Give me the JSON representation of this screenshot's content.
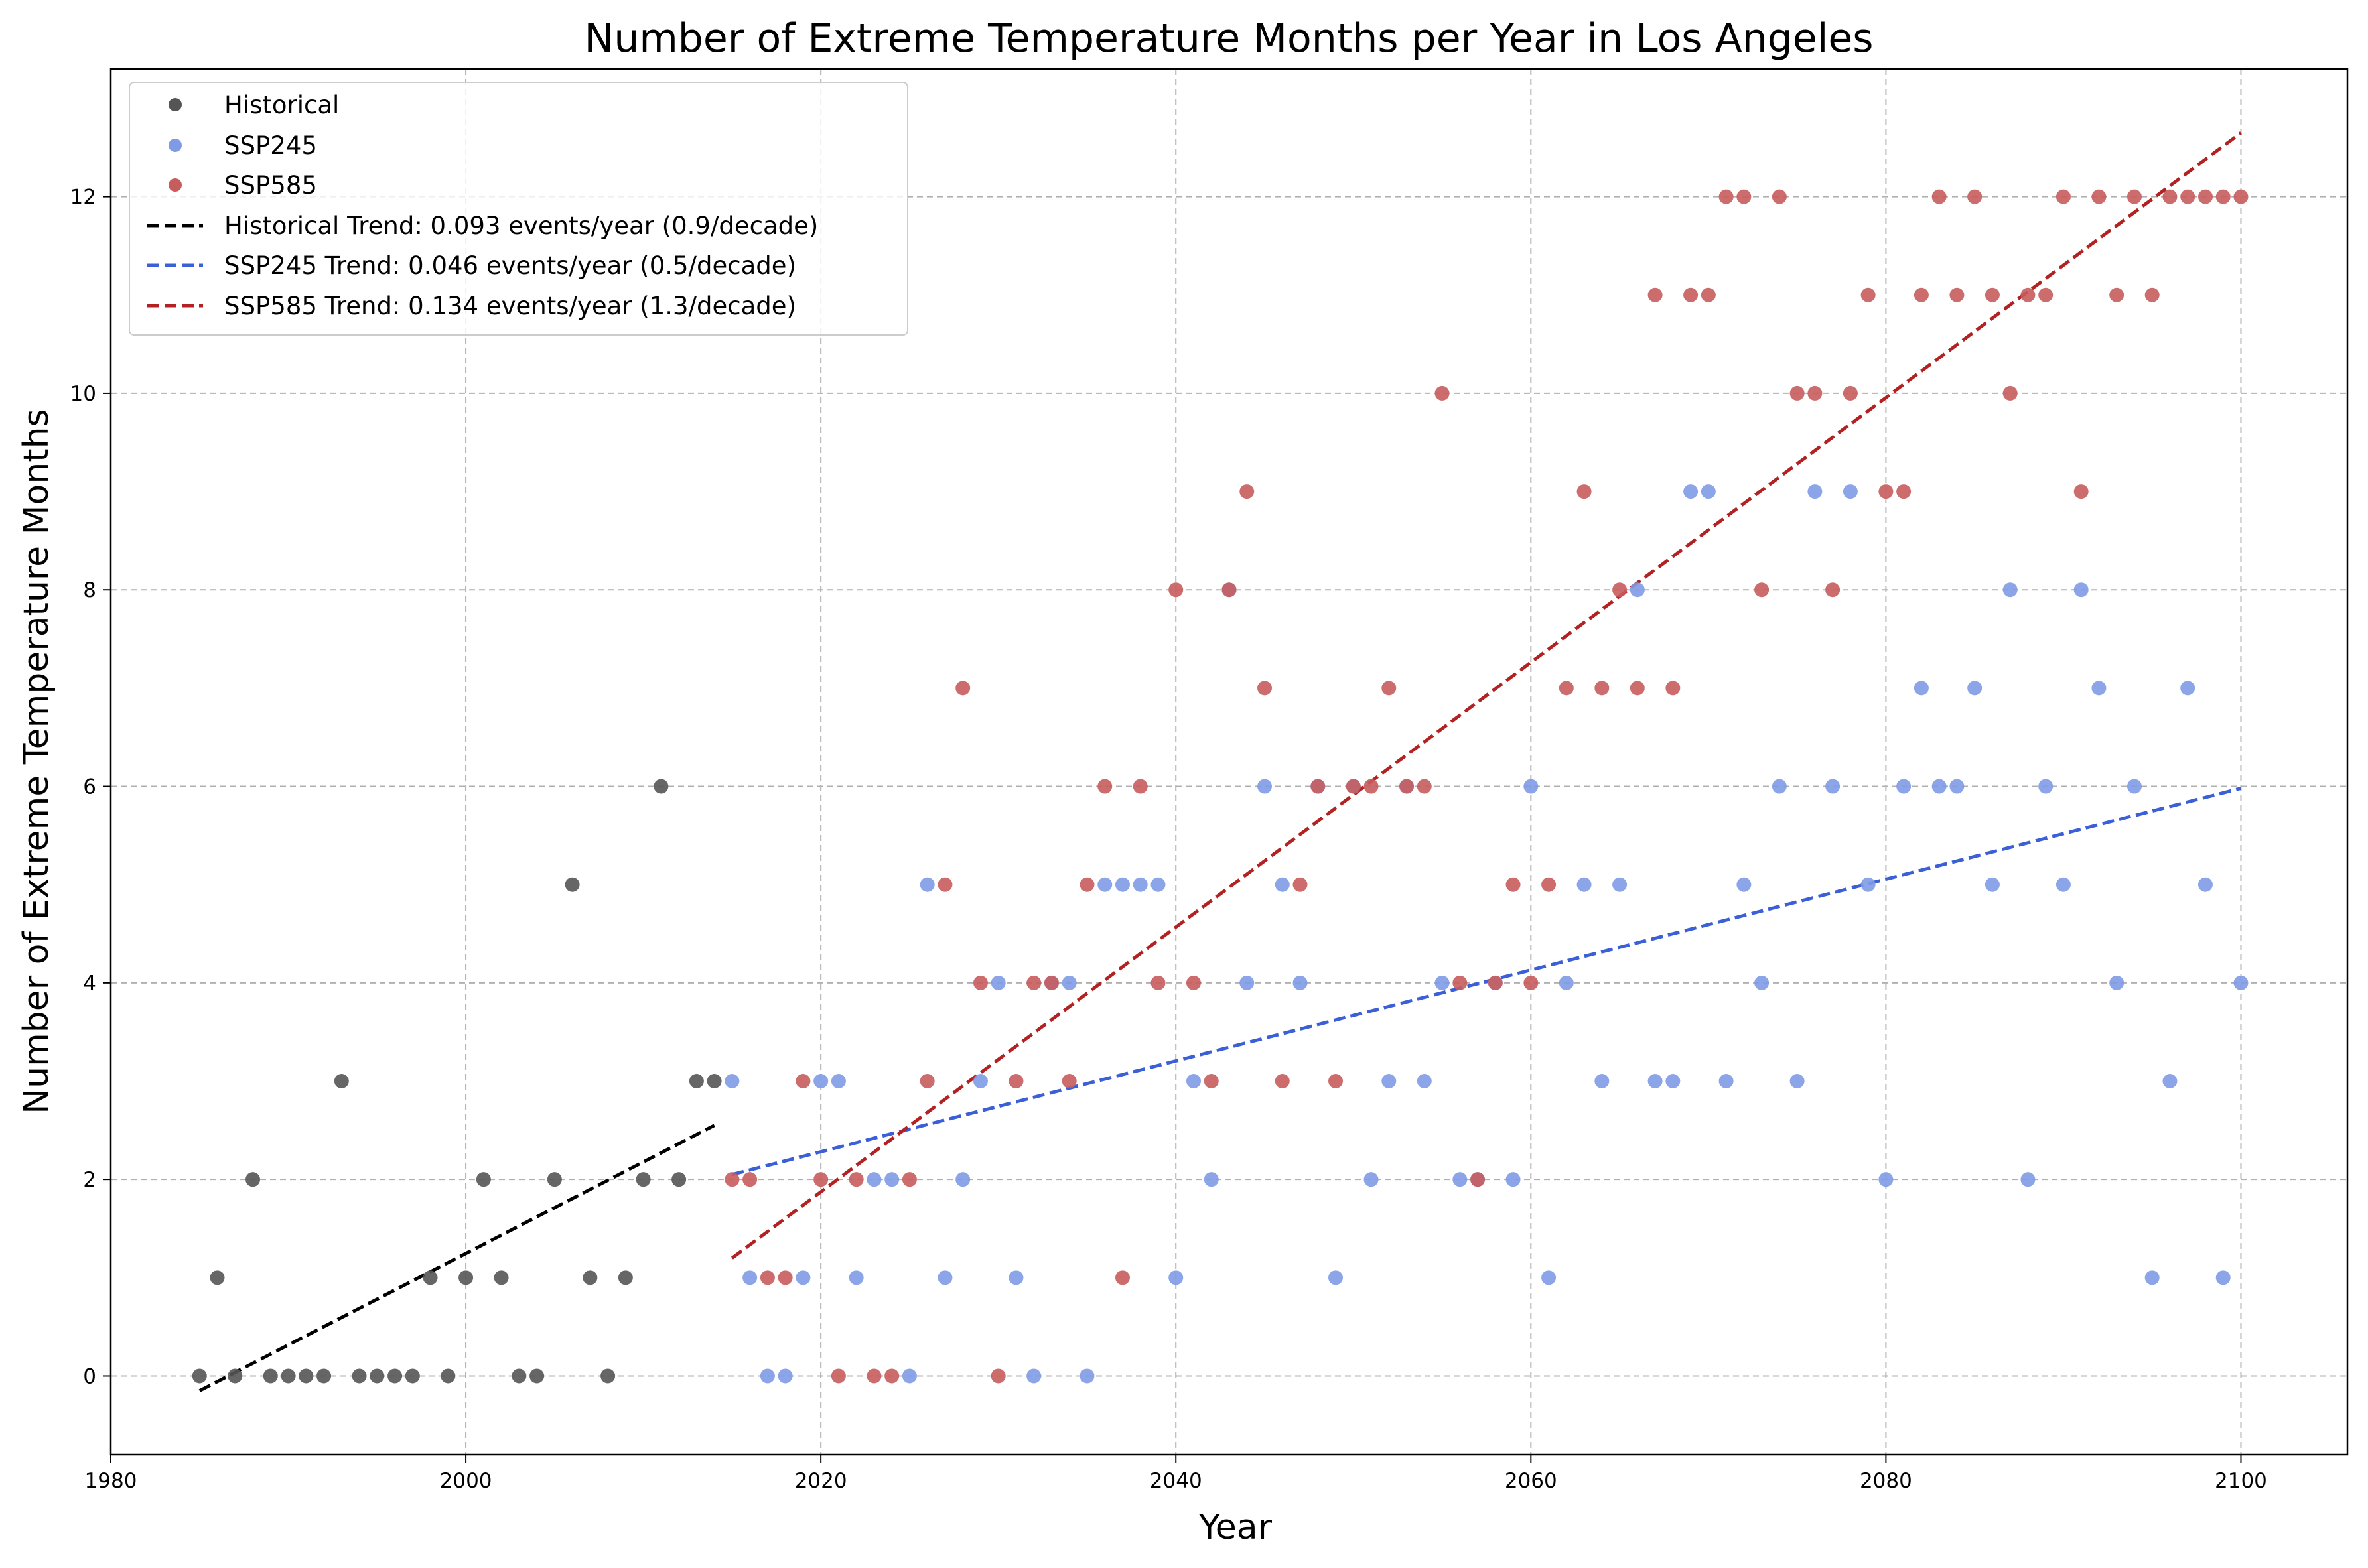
{
  "chart_data": {
    "type": "scatter",
    "title": "Number of Extreme Temperature Months per Year in Los Angeles",
    "xlabel": "Year",
    "ylabel": "Number of Extreme Temperature Months",
    "xlim": [
      1980,
      2106
    ],
    "ylim": [
      -0.8,
      13.3
    ],
    "xticks": [
      1980,
      2000,
      2020,
      2040,
      2060,
      2080,
      2100
    ],
    "yticks": [
      0,
      2,
      4,
      6,
      8,
      10,
      12
    ],
    "grid": true,
    "grid_style": "dashed",
    "legend_position": "top-left",
    "colors": {
      "historical": "#555555",
      "ssp245": "#7f9be6",
      "ssp585": "#c65c5c",
      "historical_trend": "#000000",
      "ssp245_trend": "#3a5fd6",
      "ssp585_trend": "#b22222"
    },
    "series": [
      {
        "name": "Historical",
        "kind": "scatter",
        "color_key": "historical",
        "points": [
          [
            1985,
            0
          ],
          [
            1986,
            1
          ],
          [
            1987,
            0
          ],
          [
            1988,
            2
          ],
          [
            1989,
            0
          ],
          [
            1990,
            0
          ],
          [
            1991,
            0
          ],
          [
            1992,
            0
          ],
          [
            1993,
            3
          ],
          [
            1994,
            0
          ],
          [
            1995,
            0
          ],
          [
            1996,
            0
          ],
          [
            1997,
            0
          ],
          [
            1998,
            1
          ],
          [
            1999,
            0
          ],
          [
            2000,
            1
          ],
          [
            2001,
            2
          ],
          [
            2002,
            1
          ],
          [
            2003,
            0
          ],
          [
            2004,
            0
          ],
          [
            2005,
            2
          ],
          [
            2006,
            5
          ],
          [
            2007,
            1
          ],
          [
            2008,
            0
          ],
          [
            2009,
            1
          ],
          [
            2010,
            2
          ],
          [
            2011,
            6
          ],
          [
            2012,
            2
          ],
          [
            2013,
            3
          ],
          [
            2014,
            3
          ]
        ]
      },
      {
        "name": "SSP245",
        "kind": "scatter",
        "color_key": "ssp245",
        "points": [
          [
            2015,
            3
          ],
          [
            2016,
            1
          ],
          [
            2017,
            0
          ],
          [
            2018,
            0
          ],
          [
            2019,
            1
          ],
          [
            2020,
            3
          ],
          [
            2021,
            3
          ],
          [
            2022,
            1
          ],
          [
            2023,
            2
          ],
          [
            2024,
            2
          ],
          [
            2025,
            0
          ],
          [
            2026,
            5
          ],
          [
            2027,
            1
          ],
          [
            2028,
            2
          ],
          [
            2029,
            3
          ],
          [
            2030,
            4
          ],
          [
            2031,
            1
          ],
          [
            2032,
            0
          ],
          [
            2033,
            4
          ],
          [
            2034,
            4
          ],
          [
            2035,
            0
          ],
          [
            2036,
            5
          ],
          [
            2037,
            5
          ],
          [
            2038,
            5
          ],
          [
            2039,
            5
          ],
          [
            2040,
            1
          ],
          [
            2041,
            3
          ],
          [
            2042,
            2
          ],
          [
            2043,
            8
          ],
          [
            2044,
            4
          ],
          [
            2045,
            6
          ],
          [
            2046,
            5
          ],
          [
            2047,
            4
          ],
          [
            2048,
            6
          ],
          [
            2049,
            1
          ],
          [
            2050,
            6
          ],
          [
            2051,
            2
          ],
          [
            2052,
            3
          ],
          [
            2053,
            6
          ],
          [
            2054,
            3
          ],
          [
            2055,
            4
          ],
          [
            2056,
            2
          ],
          [
            2057,
            2
          ],
          [
            2058,
            4
          ],
          [
            2059,
            2
          ],
          [
            2060,
            6
          ],
          [
            2061,
            1
          ],
          [
            2062,
            4
          ],
          [
            2063,
            5
          ],
          [
            2064,
            3
          ],
          [
            2065,
            5
          ],
          [
            2066,
            8
          ],
          [
            2067,
            3
          ],
          [
            2068,
            3
          ],
          [
            2069,
            9
          ],
          [
            2070,
            9
          ],
          [
            2071,
            3
          ],
          [
            2072,
            5
          ],
          [
            2073,
            4
          ],
          [
            2074,
            6
          ],
          [
            2075,
            3
          ],
          [
            2076,
            9
          ],
          [
            2077,
            6
          ],
          [
            2078,
            9
          ],
          [
            2079,
            5
          ],
          [
            2080,
            2
          ],
          [
            2081,
            6
          ],
          [
            2082,
            7
          ],
          [
            2083,
            6
          ],
          [
            2084,
            6
          ],
          [
            2085,
            7
          ],
          [
            2086,
            5
          ],
          [
            2087,
            8
          ],
          [
            2088,
            2
          ],
          [
            2089,
            6
          ],
          [
            2090,
            5
          ],
          [
            2091,
            8
          ],
          [
            2092,
            7
          ],
          [
            2093,
            4
          ],
          [
            2094,
            6
          ],
          [
            2095,
            1
          ],
          [
            2096,
            3
          ],
          [
            2097,
            7
          ],
          [
            2098,
            5
          ],
          [
            2099,
            1
          ],
          [
            2100,
            4
          ]
        ]
      },
      {
        "name": "SSP585",
        "kind": "scatter",
        "color_key": "ssp585",
        "points": [
          [
            2015,
            2
          ],
          [
            2016,
            2
          ],
          [
            2017,
            1
          ],
          [
            2018,
            1
          ],
          [
            2019,
            3
          ],
          [
            2020,
            2
          ],
          [
            2021,
            0
          ],
          [
            2022,
            2
          ],
          [
            2023,
            0
          ],
          [
            2024,
            0
          ],
          [
            2025,
            2
          ],
          [
            2026,
            3
          ],
          [
            2027,
            5
          ],
          [
            2028,
            7
          ],
          [
            2029,
            4
          ],
          [
            2030,
            0
          ],
          [
            2031,
            3
          ],
          [
            2032,
            4
          ],
          [
            2033,
            4
          ],
          [
            2034,
            3
          ],
          [
            2035,
            5
          ],
          [
            2036,
            6
          ],
          [
            2037,
            1
          ],
          [
            2038,
            6
          ],
          [
            2039,
            4
          ],
          [
            2040,
            8
          ],
          [
            2041,
            4
          ],
          [
            2042,
            3
          ],
          [
            2043,
            8
          ],
          [
            2044,
            9
          ],
          [
            2045,
            7
          ],
          [
            2046,
            3
          ],
          [
            2047,
            5
          ],
          [
            2048,
            6
          ],
          [
            2049,
            3
          ],
          [
            2050,
            6
          ],
          [
            2051,
            6
          ],
          [
            2052,
            7
          ],
          [
            2053,
            6
          ],
          [
            2054,
            6
          ],
          [
            2055,
            10
          ],
          [
            2056,
            4
          ],
          [
            2057,
            2
          ],
          [
            2058,
            4
          ],
          [
            2059,
            5
          ],
          [
            2060,
            4
          ],
          [
            2061,
            5
          ],
          [
            2062,
            7
          ],
          [
            2063,
            9
          ],
          [
            2064,
            7
          ],
          [
            2065,
            8
          ],
          [
            2066,
            7
          ],
          [
            2067,
            11
          ],
          [
            2068,
            7
          ],
          [
            2069,
            11
          ],
          [
            2070,
            11
          ],
          [
            2071,
            12
          ],
          [
            2072,
            12
          ],
          [
            2073,
            8
          ],
          [
            2074,
            12
          ],
          [
            2075,
            10
          ],
          [
            2076,
            10
          ],
          [
            2077,
            8
          ],
          [
            2078,
            10
          ],
          [
            2079,
            11
          ],
          [
            2080,
            9
          ],
          [
            2081,
            9
          ],
          [
            2082,
            11
          ],
          [
            2083,
            12
          ],
          [
            2084,
            11
          ],
          [
            2085,
            12
          ],
          [
            2086,
            11
          ],
          [
            2087,
            10
          ],
          [
            2088,
            11
          ],
          [
            2089,
            11
          ],
          [
            2090,
            12
          ],
          [
            2091,
            9
          ],
          [
            2092,
            12
          ],
          [
            2093,
            11
          ],
          [
            2094,
            12
          ],
          [
            2095,
            11
          ],
          [
            2096,
            12
          ],
          [
            2097,
            12
          ],
          [
            2098,
            12
          ],
          [
            2099,
            12
          ],
          [
            2100,
            12
          ]
        ]
      },
      {
        "name": "Historical Trend: 0.093 events/year (0.9/decade)",
        "kind": "trend",
        "color_key": "historical_trend",
        "start": [
          1985,
          -0.15
        ],
        "end": [
          2014,
          2.55
        ]
      },
      {
        "name": "SSP245 Trend: 0.046 events/year (0.5/decade)",
        "kind": "trend",
        "color_key": "ssp245_trend",
        "start": [
          2015,
          2.05
        ],
        "end": [
          2100,
          5.98
        ]
      },
      {
        "name": "SSP585 Trend: 0.134 events/year (1.3/decade)",
        "kind": "trend",
        "color_key": "ssp585_trend",
        "start": [
          2015,
          1.2
        ],
        "end": [
          2100,
          12.65
        ]
      }
    ]
  }
}
